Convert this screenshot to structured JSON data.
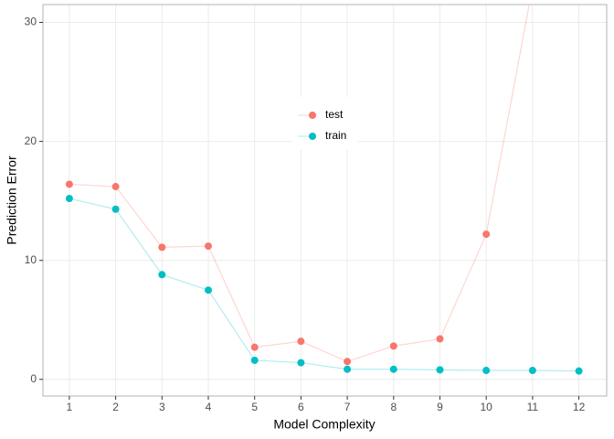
{
  "chart_data": {
    "type": "line",
    "x_label": "Model Complexity",
    "y_label": "Prediction Error",
    "x": [
      1,
      2,
      3,
      4,
      5,
      6,
      7,
      8,
      9,
      10,
      11,
      12
    ],
    "series": [
      {
        "name": "test",
        "color": "#F8766D",
        "values": [
          16.4,
          16.2,
          11.1,
          11.2,
          2.7,
          3.2,
          1.5,
          2.8,
          3.4,
          12.2,
          33,
          null
        ]
      },
      {
        "name": "train",
        "color": "#00BFC4",
        "values": [
          15.2,
          14.3,
          8.8,
          7.5,
          1.6,
          1.4,
          0.85,
          0.85,
          0.8,
          0.75,
          0.75,
          0.7
        ]
      }
    ],
    "xlim": [
      0.43,
      12.6
    ],
    "ylim": [
      -1.4,
      31.5
    ],
    "xticks": [
      1,
      2,
      3,
      4,
      5,
      6,
      7,
      8,
      9,
      10,
      11,
      12
    ],
    "yticks": [
      0,
      10,
      20,
      30
    ],
    "grid": true,
    "legend_position": "inside-top"
  }
}
